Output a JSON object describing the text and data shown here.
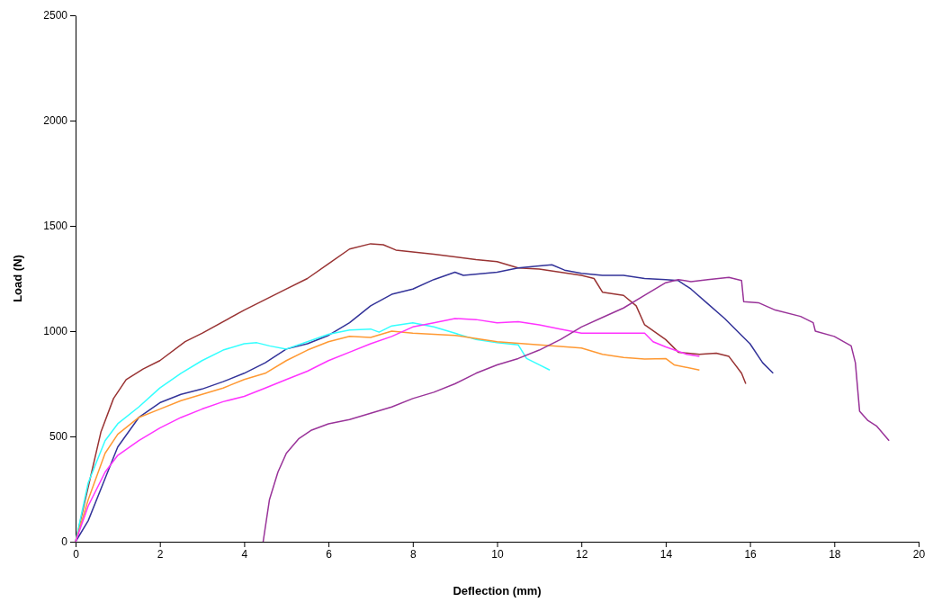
{
  "chart_data": {
    "type": "line",
    "xlabel": "Deflection (mm)",
    "ylabel": "Load (N)",
    "xlim": [
      0,
      20
    ],
    "xticks": [
      0,
      2,
      4,
      6,
      8,
      10,
      12,
      14,
      16,
      18,
      20
    ],
    "ylim": [
      0,
      2500
    ],
    "yticks": [
      0,
      500,
      1000,
      1500,
      2000,
      2500
    ],
    "grid": false,
    "marker": "none",
    "line_style": "solid",
    "series": [
      {
        "color": "#993333",
        "x": [
          0,
          0.3,
          0.6,
          0.9,
          1.2,
          1.6,
          2,
          2.6,
          3,
          4,
          5,
          5.5,
          6,
          6.5,
          7,
          7.3,
          7.6,
          8.5,
          9.5,
          10,
          10.5,
          11,
          12,
          12.3,
          12.5,
          13,
          13.3,
          13.5,
          14,
          14.3,
          14.8,
          15.2,
          15.5,
          15.8,
          15.9
        ],
        "values": [
          0,
          null,
          520,
          680,
          770,
          820,
          860,
          950,
          990,
          1100,
          1200,
          1250,
          1320,
          1390,
          1415,
          1410,
          1385,
          1365,
          1340,
          1330,
          1300,
          1295,
          1265,
          1250,
          1185,
          1170,
          1120,
          1030,
          960,
          900,
          890,
          895,
          880,
          800,
          750
        ]
      },
      {
        "color": "#333399",
        "x": [
          0,
          0.3,
          0.7,
          1,
          1.5,
          2,
          2.5,
          3,
          3.5,
          4,
          4.5,
          5,
          5.5,
          6,
          6.5,
          7,
          7.5,
          8,
          8.5,
          9,
          9.2,
          10,
          10.5,
          11,
          11.3,
          11.6,
          12,
          12.5,
          13,
          13.5,
          14,
          14.3,
          14.6,
          15,
          15.4,
          15.8,
          16,
          16.3,
          16.55
        ],
        "values": [
          0,
          100,
          300,
          450,
          590,
          660,
          700,
          725,
          760,
          800,
          850,
          915,
          940,
          980,
          1040,
          1120,
          1175,
          1200,
          1245,
          1280,
          1265,
          1280,
          1300,
          1310,
          1315,
          1290,
          1275,
          1265,
          1265,
          1250,
          1245,
          1240,
          1200,
          1130,
          1060,
          980,
          940,
          850,
          800
        ]
      },
      {
        "color": "#33ffff",
        "x": [
          0,
          0.3,
          0.7,
          1,
          1.5,
          2,
          2.5,
          3,
          3.5,
          4,
          4.3,
          4.6,
          5,
          5.5,
          6,
          6.5,
          7,
          7.2,
          7.5,
          8,
          8.5,
          9,
          9.5,
          10,
          10.5,
          10.7,
          11,
          11.25
        ],
        "values": [
          0,
          280,
          480,
          560,
          640,
          730,
          800,
          860,
          910,
          940,
          945,
          930,
          915,
          950,
          985,
          1005,
          1010,
          995,
          1025,
          1040,
          1020,
          990,
          960,
          945,
          935,
          870,
          840,
          815
        ]
      },
      {
        "color": "#ff9933",
        "x": [
          0,
          0.3,
          0.7,
          1,
          1.5,
          2,
          2.5,
          3,
          3.5,
          4,
          4.5,
          5,
          5.5,
          6,
          6.5,
          7,
          7.5,
          8,
          9,
          10,
          11,
          12,
          12.5,
          13,
          13.5,
          14,
          14.2,
          14.8
        ],
        "values": [
          0,
          200,
          420,
          510,
          590,
          630,
          670,
          700,
          730,
          770,
          800,
          860,
          910,
          950,
          975,
          970,
          1000,
          990,
          980,
          950,
          935,
          920,
          890,
          875,
          868,
          870,
          840,
          815
        ]
      },
      {
        "color": "#ff33ff",
        "x": [
          0,
          0.3,
          0.7,
          1,
          1.5,
          2,
          2.5,
          3,
          3.5,
          4,
          4.5,
          5,
          5.5,
          6,
          6.5,
          7,
          7.5,
          8,
          8.5,
          9,
          9.5,
          10,
          10.5,
          11,
          11.5,
          12,
          13,
          13.5,
          13.7,
          14,
          14.5,
          14.8
        ],
        "values": [
          0,
          170,
          330,
          410,
          480,
          540,
          590,
          630,
          665,
          690,
          730,
          770,
          810,
          860,
          900,
          940,
          975,
          1020,
          1040,
          1060,
          1055,
          1040,
          1045,
          1030,
          1010,
          990,
          990,
          990,
          950,
          925,
          890,
          880
        ]
      },
      {
        "color": "#993399",
        "x": [
          4.45,
          4.6,
          4.8,
          5,
          5.3,
          5.6,
          6,
          6.5,
          7,
          7.5,
          8,
          8.5,
          9,
          9.5,
          10,
          10.5,
          11,
          11.5,
          12,
          12.5,
          13,
          13.5,
          14,
          14.3,
          14.6,
          15,
          15.5,
          15.8,
          15.85,
          16.2,
          16.6,
          17.2,
          17.5,
          17.55,
          18,
          18.4,
          18.5,
          18.6,
          18.8,
          19,
          19.3
        ],
        "values": [
          0,
          200,
          330,
          420,
          490,
          530,
          560,
          580,
          610,
          640,
          680,
          710,
          750,
          800,
          840,
          870,
          910,
          960,
          1020,
          1065,
          1110,
          1170,
          1230,
          1245,
          1235,
          1245,
          1255,
          1240,
          1140,
          1135,
          1100,
          1070,
          1040,
          1000,
          975,
          930,
          850,
          620,
          575,
          550,
          480
        ]
      }
    ]
  }
}
